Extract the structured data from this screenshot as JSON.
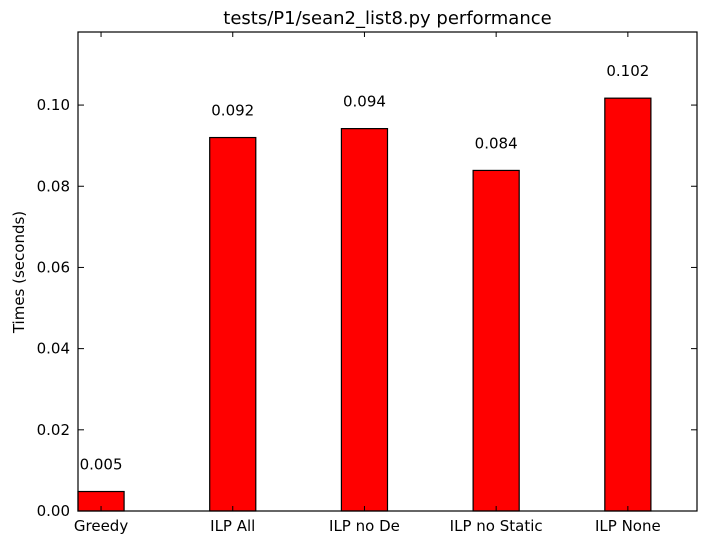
{
  "chart_data": {
    "type": "bar",
    "title": "tests/P1/sean2_list8.py performance",
    "xlabel": "",
    "ylabel": "Times (seconds)",
    "categories": [
      "Greedy",
      "ILP All",
      "ILP no De",
      "ILP no Static",
      "ILP None"
    ],
    "values": [
      0.0048,
      0.092,
      0.0942,
      0.0839,
      0.1017
    ],
    "value_labels": [
      "0.005",
      "0.092",
      "0.094",
      "0.084",
      "0.102"
    ],
    "yticks": [
      "0.00",
      "0.02",
      "0.04",
      "0.06",
      "0.08",
      "0.10"
    ],
    "ytick_values": [
      0.0,
      0.02,
      0.04,
      0.06,
      0.08,
      0.1
    ],
    "ylim": [
      0,
      0.118
    ],
    "grid": false,
    "bar_color": "#ff0000",
    "edge_color": "#000000"
  }
}
